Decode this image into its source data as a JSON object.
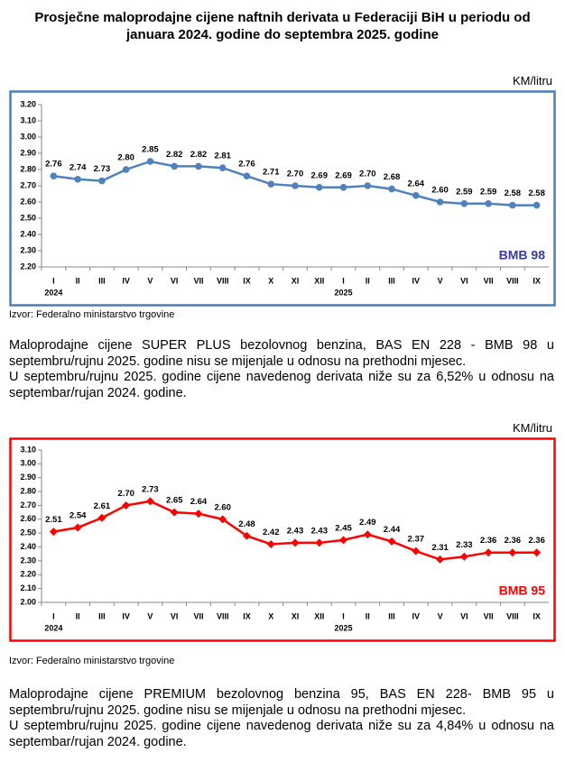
{
  "title": "Prosječne maloprodajne cijene naftnih derivata u Federaciji BiH u periodu od januara 2024. godine do septembra 2025. godine",
  "chart_data": [
    {
      "type": "line",
      "unit_label": "KM/litru",
      "marker": "circle",
      "border_color": "#4a7ebb",
      "legend_position": "lower right",
      "categories": [
        "I",
        "II",
        "III",
        "IV",
        "V",
        "VI",
        "VII",
        "VIII",
        "IX",
        "X",
        "XI",
        "XII",
        "I",
        "II",
        "III",
        "IV",
        "V",
        "VI",
        "VII",
        "VIII",
        "IX"
      ],
      "category_years": [
        "2024",
        null,
        null,
        null,
        null,
        null,
        null,
        null,
        null,
        null,
        null,
        null,
        "2025",
        null,
        null,
        null,
        null,
        null,
        null,
        null,
        null
      ],
      "series": [
        {
          "name": "BMB 98",
          "color": "#4f81bd",
          "values": [
            2.76,
            2.74,
            2.73,
            2.8,
            2.85,
            2.82,
            2.82,
            2.81,
            2.76,
            2.71,
            2.7,
            2.69,
            2.69,
            2.7,
            2.68,
            2.64,
            2.6,
            2.59,
            2.59,
            2.58,
            2.58
          ],
          "value_labels": [
            "2.76",
            "2.74",
            "2.73",
            "2.80",
            "2.85",
            "2.82",
            "2.82",
            "2.81",
            "2.76",
            "2.71",
            "2.70",
            "2.69",
            "2.69",
            "2.70",
            "2.68",
            "2.64",
            "2.60",
            "2.59",
            "2.59",
            "2.58",
            "2.58"
          ]
        }
      ],
      "ylim": [
        2.2,
        3.2
      ],
      "yticks": [
        {
          "value": 2.2,
          "label": "2.20"
        },
        {
          "value": 2.3,
          "label": "2.30"
        },
        {
          "value": 2.4,
          "label": "2.40"
        },
        {
          "value": 2.5,
          "label": "2.50"
        },
        {
          "value": 2.6,
          "label": "2.60"
        },
        {
          "value": 2.7,
          "label": "2.70"
        },
        {
          "value": 2.8,
          "label": "2.80"
        },
        {
          "value": 2.9,
          "label": "2.90"
        },
        {
          "value": 3.0,
          "label": "3.00"
        },
        {
          "value": 3.1,
          "label": "3.10"
        },
        {
          "value": 3.2,
          "label": "3.20"
        }
      ]
    },
    {
      "type": "line",
      "unit_label": "KM/litru",
      "marker": "diamond",
      "border_color": "#ff0000",
      "legend_position": "lower right",
      "categories": [
        "I",
        "II",
        "III",
        "IV",
        "V",
        "VI",
        "VII",
        "VIII",
        "IX",
        "X",
        "XI",
        "XII",
        "I",
        "II",
        "III",
        "IV",
        "V",
        "VI",
        "VII",
        "VIII",
        "IX"
      ],
      "category_years": [
        "2024",
        null,
        null,
        null,
        null,
        null,
        null,
        null,
        null,
        null,
        null,
        null,
        "2025",
        null,
        null,
        null,
        null,
        null,
        null,
        null,
        null
      ],
      "series": [
        {
          "name": "BMB 95",
          "color": "#ff0000",
          "values": [
            2.51,
            2.54,
            2.61,
            2.7,
            2.73,
            2.65,
            2.64,
            2.6,
            2.48,
            2.42,
            2.43,
            2.43,
            2.45,
            2.49,
            2.44,
            2.37,
            2.31,
            2.33,
            2.36,
            2.36,
            2.36
          ],
          "value_labels": [
            "2.51",
            "2.54",
            "2.61",
            "2.70",
            "2.73",
            "2.65",
            "2.64",
            "2.60",
            "2.48",
            "2.42",
            "2.43",
            "2.43",
            "2.45",
            "2.49",
            "2.44",
            "2.37",
            "2.31",
            "2.33",
            "2.36",
            "2.36",
            "2.36"
          ]
        }
      ],
      "ylim": [
        2.0,
        3.1
      ],
      "yticks": [
        {
          "value": 2.0,
          "label": "2.00"
        },
        {
          "value": 2.1,
          "label": "2.10"
        },
        {
          "value": 2.2,
          "label": "2.20"
        },
        {
          "value": 2.3,
          "label": "2.30"
        },
        {
          "value": 2.4,
          "label": "2.40"
        },
        {
          "value": 2.5,
          "label": "2.50"
        },
        {
          "value": 2.6,
          "label": "2.60"
        },
        {
          "value": 2.7,
          "label": "2.70"
        },
        {
          "value": 2.8,
          "label": "2.80"
        },
        {
          "value": 2.9,
          "label": "2.90"
        },
        {
          "value": 3.0,
          "label": "3.00"
        },
        {
          "value": 3.1,
          "label": "3.10"
        }
      ]
    }
  ],
  "sources": [
    "Izvor: Federalno ministarstvo trgovine",
    "Izvor: Federalno ministarstvo trgovine"
  ],
  "paragraphs": [
    [
      "Maloprodajne cijene SUPER PLUS bezolovnog benzina, BAS EN 228 - BMB 98 u septembru/rujnu 2025. godine nisu se mijenjale u odnosu na prethodni mjesec.",
      "U septembru/rujnu 2025. godine cijene navedenog derivata niže su za 6,52% u odnosu na septembar/rujan 2024. godine."
    ],
    [
      "Maloprodajne cijene PREMIUM bezolovnog benzina 95, BAS EN 228- BMB 95 u septembru/rujnu 2025. godine nisu se mijenjale u odnosu na prethodni mjesec.",
      "U septembru/rujnu 2025. godine cijene navedenog derivata niže su za 4,84% u odnosu na septembar/rujan 2024. godine."
    ]
  ]
}
